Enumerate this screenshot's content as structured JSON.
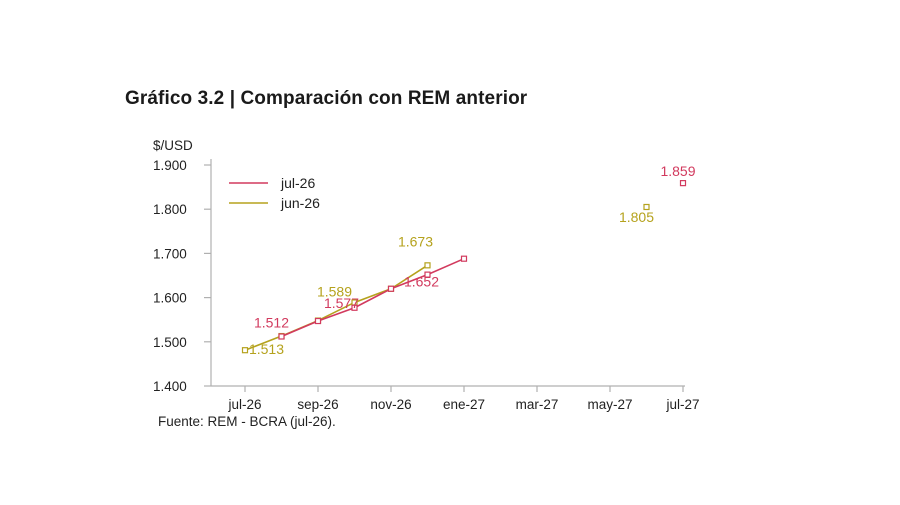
{
  "title": "Gráfico 3.2 | Comparación con REM anterior",
  "source": "Fuente: REM - BCRA (jul-26).",
  "colors": {
    "jul26": "#d23a5e",
    "jun26": "#b5a21d",
    "axis": "#b0b0b0"
  },
  "chart_data": {
    "type": "line",
    "title": "Gráfico 3.2 | Comparación con REM anterior",
    "ylabel": "$/USD",
    "xlabel": "",
    "categories": [
      "jul-26",
      "ago-26",
      "sep-26",
      "oct-26",
      "nov-26",
      "dic-26",
      "ene-27",
      "feb-27",
      "mar-27",
      "abr-27",
      "may-27",
      "jun-27",
      "jul-27"
    ],
    "x_tick_labels": [
      "jul-26",
      "sep-26",
      "nov-26",
      "ene-27",
      "mar-27",
      "may-27",
      "jul-27"
    ],
    "y_tick_labels": [
      "1.400",
      "1.500",
      "1.600",
      "1.700",
      "1.800",
      "1.900"
    ],
    "ylim": [
      1400,
      1900
    ],
    "grid": false,
    "legend_position": "top-left",
    "series": [
      {
        "name": "jul-26",
        "color": "#d23a5e",
        "line_points": [
          {
            "x": "ago-26",
            "y": 1512
          },
          {
            "x": "sep-26",
            "y": 1547
          },
          {
            "x": "oct-26",
            "y": 1577
          },
          {
            "x": "nov-26",
            "y": 1620
          },
          {
            "x": "dic-26",
            "y": 1652
          },
          {
            "x": "ene-27",
            "y": 1688
          }
        ],
        "isolated_points": [
          {
            "x": "jul-27",
            "y": 1859
          }
        ],
        "labels": [
          {
            "x": "ago-26",
            "text": "1.512"
          },
          {
            "x": "oct-26",
            "text": "1.577"
          },
          {
            "x": "dic-26",
            "text": "1.652"
          },
          {
            "x": "jul-27",
            "text": "1.859"
          }
        ]
      },
      {
        "name": "jun-26",
        "color": "#b5a21d",
        "line_points": [
          {
            "x": "jul-26",
            "y": 1481
          },
          {
            "x": "ago-26",
            "y": 1513
          },
          {
            "x": "sep-26",
            "y": 1548
          },
          {
            "x": "oct-26",
            "y": 1589
          },
          {
            "x": "nov-26",
            "y": 1620
          },
          {
            "x": "dic-26",
            "y": 1673
          }
        ],
        "isolated_points": [
          {
            "x": "jun-27",
            "y": 1805
          }
        ],
        "labels": [
          {
            "x": "ago-26",
            "text": "1.513"
          },
          {
            "x": "oct-26",
            "text": "1.589"
          },
          {
            "x": "dic-26",
            "text": "1.673"
          },
          {
            "x": "jun-27",
            "text": "1.805"
          }
        ]
      }
    ]
  }
}
